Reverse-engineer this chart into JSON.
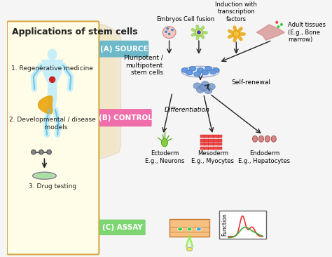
{
  "title": "Applications of stem cells",
  "bg_color": "#f5f5f5",
  "left_panel_bg": "#fffde7",
  "left_panel_border": "#d4a843",
  "source_box_color": "#6db8c9",
  "control_box_color": "#f06dab",
  "assay_box_color": "#7dd672",
  "left_items": [
    "1. Regenerative medicine",
    "2. Developmental / disease\n    models",
    "3. Drug testing"
  ],
  "source_label": "(A) SOURCE",
  "control_label": "(B) CONTROL",
  "assay_label": "(C) ASSAY",
  "source_inputs": [
    "Embryos",
    "Cell fusion",
    "Induction with\ntranscription\nfactors"
  ],
  "adult_tissue_label": "Adult tissues\n(E.g., Bone\nmarrow)",
  "pluripotent_label": "Pluripotent /\nmultipotent\nstem cells",
  "self_renewal_label": "Self-renewal",
  "differentiation_label": "Differentiation",
  "ectoderm_label": "Ectoderm\nE.g., Neurons",
  "mesoderm_label": "Mesoderm\nE.g., Myocytes",
  "endoderm_label": "Endoderm\nE.g., Hepatocytes",
  "function_label": "Function",
  "arrow_color": "#222222",
  "text_color": "#222222",
  "font_size_title": 9,
  "font_size_label": 7,
  "font_size_box": 7.5
}
